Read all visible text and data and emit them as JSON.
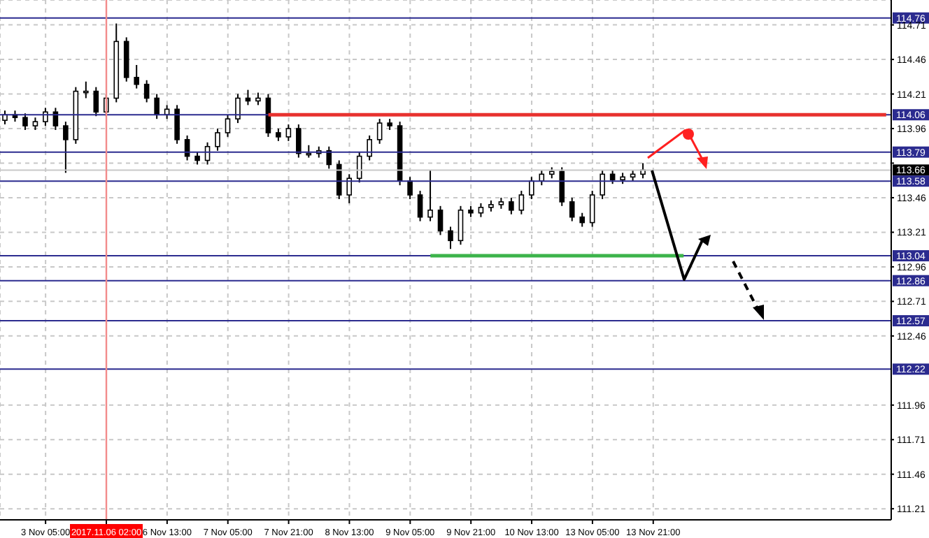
{
  "chart_data": {
    "type": "candlestick",
    "categories": [
      null,
      null,
      null,
      null,
      "3 Nov 05:00",
      null,
      null,
      null,
      null,
      null,
      "2017.11.06 02:00",
      null,
      null,
      null,
      null,
      null,
      "6 Nov 13:00",
      null,
      null,
      null,
      null,
      null,
      "7 Nov 05:00",
      null,
      null,
      null,
      null,
      null,
      "7 Nov 21:00",
      null,
      null,
      null,
      null,
      null,
      "8 Nov 13:00",
      null,
      null,
      null,
      null,
      null,
      "9 Nov 05:00",
      null,
      null,
      null,
      null,
      null,
      "9 Nov 21:00",
      null,
      null,
      null,
      null,
      null,
      "10 Nov 13:00",
      null,
      null,
      null,
      null,
      null,
      "13 Nov 05:00",
      null,
      null,
      null,
      null,
      null,
      "13 Nov 21:00",
      null,
      null,
      null,
      null,
      null,
      null,
      null,
      null,
      null,
      null,
      null,
      null,
      null,
      null,
      null,
      null,
      null,
      null,
      null,
      null,
      null,
      null,
      null
    ],
    "ylim": [
      111.13,
      114.89
    ],
    "yticks": [
      111.21,
      111.46,
      111.71,
      111.96,
      112.46,
      112.71,
      112.96,
      113.21,
      113.46,
      {
        "value": 113.71,
        "label": null
      },
      113.96,
      114.21,
      114.46,
      114.71
    ],
    "grid": true,
    "series": [
      {
        "type": "candlestick",
        "color": "#000000",
        "ohlc": [
          [
            114.02,
            114.09,
            113.99,
            114.06
          ],
          [
            114.06,
            114.09,
            114.01,
            114.04
          ],
          [
            114.04,
            114.07,
            113.95,
            113.98
          ],
          [
            113.98,
            114.04,
            113.95,
            114.01
          ],
          [
            114.01,
            114.11,
            113.98,
            114.08
          ],
          [
            114.08,
            114.11,
            113.95,
            113.98
          ],
          [
            113.98,
            114.01,
            113.64,
            113.88
          ],
          [
            113.88,
            114.26,
            113.85,
            114.23
          ],
          [
            114.23,
            114.3,
            114.18,
            114.23
          ],
          [
            114.23,
            114.26,
            114.05,
            114.08
          ],
          [
            114.08,
            114.21,
            114.05,
            114.18
          ],
          [
            114.18,
            114.72,
            114.15,
            114.59
          ],
          [
            114.59,
            114.62,
            114.3,
            114.33
          ],
          [
            114.33,
            114.42,
            114.25,
            114.28
          ],
          [
            114.28,
            114.31,
            114.15,
            114.18
          ],
          [
            114.18,
            114.21,
            114.03,
            114.06
          ],
          [
            114.06,
            114.13,
            114.03,
            114.1
          ],
          [
            114.1,
            114.13,
            113.85,
            113.88
          ],
          [
            113.88,
            113.91,
            113.73,
            113.76
          ],
          [
            113.76,
            113.79,
            113.7,
            113.73
          ],
          [
            113.73,
            113.86,
            113.7,
            113.83
          ],
          [
            113.83,
            113.96,
            113.8,
            113.93
          ],
          [
            113.93,
            114.06,
            113.9,
            114.03
          ],
          [
            114.03,
            114.21,
            114.0,
            114.18
          ],
          [
            114.18,
            114.24,
            114.13,
            114.16
          ],
          [
            114.16,
            114.22,
            114.13,
            114.18
          ],
          [
            114.18,
            114.21,
            113.9,
            113.93
          ],
          [
            113.93,
            113.96,
            113.87,
            113.9
          ],
          [
            113.9,
            113.99,
            113.87,
            113.96
          ],
          [
            113.96,
            113.99,
            113.75,
            113.78
          ],
          [
            113.78,
            113.84,
            113.75,
            113.78
          ],
          [
            113.78,
            113.83,
            113.75,
            113.8
          ],
          [
            113.8,
            113.83,
            113.67,
            113.7
          ],
          [
            113.7,
            113.73,
            113.45,
            113.48
          ],
          [
            113.48,
            113.63,
            113.42,
            113.6
          ],
          [
            113.6,
            113.79,
            113.57,
            113.76
          ],
          [
            113.76,
            113.91,
            113.73,
            113.88
          ],
          [
            113.88,
            114.03,
            113.85,
            114.0
          ],
          [
            114.0,
            114.03,
            113.95,
            113.98
          ],
          [
            113.98,
            114.01,
            113.55,
            113.58
          ],
          [
            113.58,
            113.61,
            113.45,
            113.48
          ],
          [
            113.48,
            113.51,
            113.29,
            113.32
          ],
          [
            113.32,
            113.66,
            113.29,
            113.37
          ],
          [
            113.37,
            113.4,
            113.19,
            113.22
          ],
          [
            113.22,
            113.25,
            113.09,
            113.15
          ],
          [
            113.15,
            113.4,
            113.12,
            113.37
          ],
          [
            113.37,
            113.4,
            113.32,
            113.35
          ],
          [
            113.35,
            113.42,
            113.32,
            113.39
          ],
          [
            113.39,
            113.44,
            113.36,
            113.41
          ],
          [
            113.41,
            113.46,
            113.38,
            113.43
          ],
          [
            113.43,
            113.46,
            113.34,
            113.37
          ],
          [
            113.37,
            113.51,
            113.34,
            113.48
          ],
          [
            113.48,
            113.61,
            113.45,
            113.58
          ],
          [
            113.58,
            113.66,
            113.55,
            113.63
          ],
          [
            113.63,
            113.68,
            113.6,
            113.65
          ],
          [
            113.65,
            113.68,
            113.4,
            113.43
          ],
          [
            113.43,
            113.46,
            113.29,
            113.32
          ],
          [
            113.32,
            113.35,
            113.25,
            113.28
          ],
          [
            113.28,
            113.51,
            113.25,
            113.48
          ],
          [
            113.48,
            113.66,
            113.45,
            113.63
          ],
          [
            113.63,
            113.66,
            113.56,
            113.59
          ],
          [
            113.59,
            113.64,
            113.56,
            113.61
          ],
          [
            113.61,
            113.66,
            113.58,
            113.63
          ],
          [
            113.63,
            113.71,
            113.6,
            113.66
          ],
          null,
          null,
          null,
          null,
          null,
          null,
          null,
          null,
          null,
          null,
          null,
          null,
          null,
          null,
          null,
          null,
          null,
          null,
          null,
          null,
          null,
          null,
          null,
          null
        ]
      },
      {
        "type": "line",
        "color": "#e8322f",
        "values": [
          null,
          null,
          null,
          null,
          null,
          null,
          null,
          null,
          null,
          null,
          null,
          null,
          null,
          null,
          null,
          null,
          null,
          null,
          null,
          null,
          null,
          null,
          null,
          null,
          null,
          null,
          114.06,
          114.06,
          114.06,
          114.06,
          114.06,
          114.06,
          114.06,
          114.06,
          114.06,
          114.06,
          114.06,
          114.06,
          114.06,
          114.06,
          114.06,
          114.06,
          114.06,
          114.06,
          114.06,
          114.06,
          114.06,
          114.06,
          114.06,
          114.06,
          114.06,
          114.06,
          114.06,
          114.06,
          114.06,
          114.06,
          114.06,
          114.06,
          114.06,
          114.06,
          114.06,
          114.06,
          114.06,
          114.06,
          114.06,
          114.06,
          114.06,
          114.06,
          114.06,
          114.06,
          114.06,
          114.06,
          114.06,
          114.06,
          114.06,
          114.06,
          114.06,
          114.06,
          114.06,
          114.06,
          114.06,
          114.06,
          114.06,
          114.06,
          114.06,
          114.06,
          114.06,
          114.06
        ]
      },
      {
        "type": "line",
        "color": "#3cb44b",
        "values": [
          null,
          null,
          null,
          null,
          null,
          null,
          null,
          null,
          null,
          null,
          null,
          null,
          null,
          null,
          null,
          null,
          null,
          null,
          null,
          null,
          null,
          null,
          null,
          null,
          null,
          null,
          null,
          null,
          null,
          null,
          null,
          null,
          null,
          null,
          null,
          null,
          null,
          null,
          null,
          null,
          null,
          null,
          113.04,
          113.04,
          113.04,
          113.04,
          113.04,
          113.04,
          113.04,
          113.04,
          113.04,
          113.04,
          113.04,
          113.04,
          113.04,
          113.04,
          113.04,
          113.04,
          113.04,
          113.04,
          113.04,
          113.04,
          113.04,
          113.04,
          113.04,
          113.04,
          113.04,
          113.04,
          null,
          null,
          null,
          null,
          null,
          null,
          null,
          null,
          null,
          null,
          null,
          null,
          null,
          null,
          null,
          null,
          null,
          null,
          null,
          null
        ]
      }
    ],
    "marker": "none",
    "ref_lines": [
      {
        "axis": "y",
        "value": 114.76,
        "label": "114.76",
        "color": "#2b2b8f"
      },
      {
        "axis": "y",
        "value": 114.06,
        "label": "114.06",
        "color": "#2b2b8f"
      },
      {
        "axis": "y",
        "value": 113.79,
        "label": "113.79",
        "color": "#2b2b8f"
      },
      {
        "axis": "y",
        "value": 113.66,
        "label": "113.66",
        "color": "#c8c8c8"
      },
      {
        "axis": "y",
        "value": 113.58,
        "label": "113.58",
        "color": "#2b2b8f"
      },
      {
        "axis": "y",
        "value": 113.04,
        "label": "113.04",
        "color": "#2b2b8f"
      },
      {
        "axis": "y",
        "value": 112.86,
        "label": "112.86",
        "color": "#2b2b8f"
      },
      {
        "axis": "y",
        "value": 112.57,
        "label": "112.57",
        "color": "#2b2b8f"
      },
      {
        "axis": "y",
        "value": 112.22,
        "label": "112.22",
        "color": "#2b2b8f"
      },
      {
        "axis": "x",
        "value": "2017.11.06 02:00",
        "color": "#f28b8b"
      }
    ]
  }
}
